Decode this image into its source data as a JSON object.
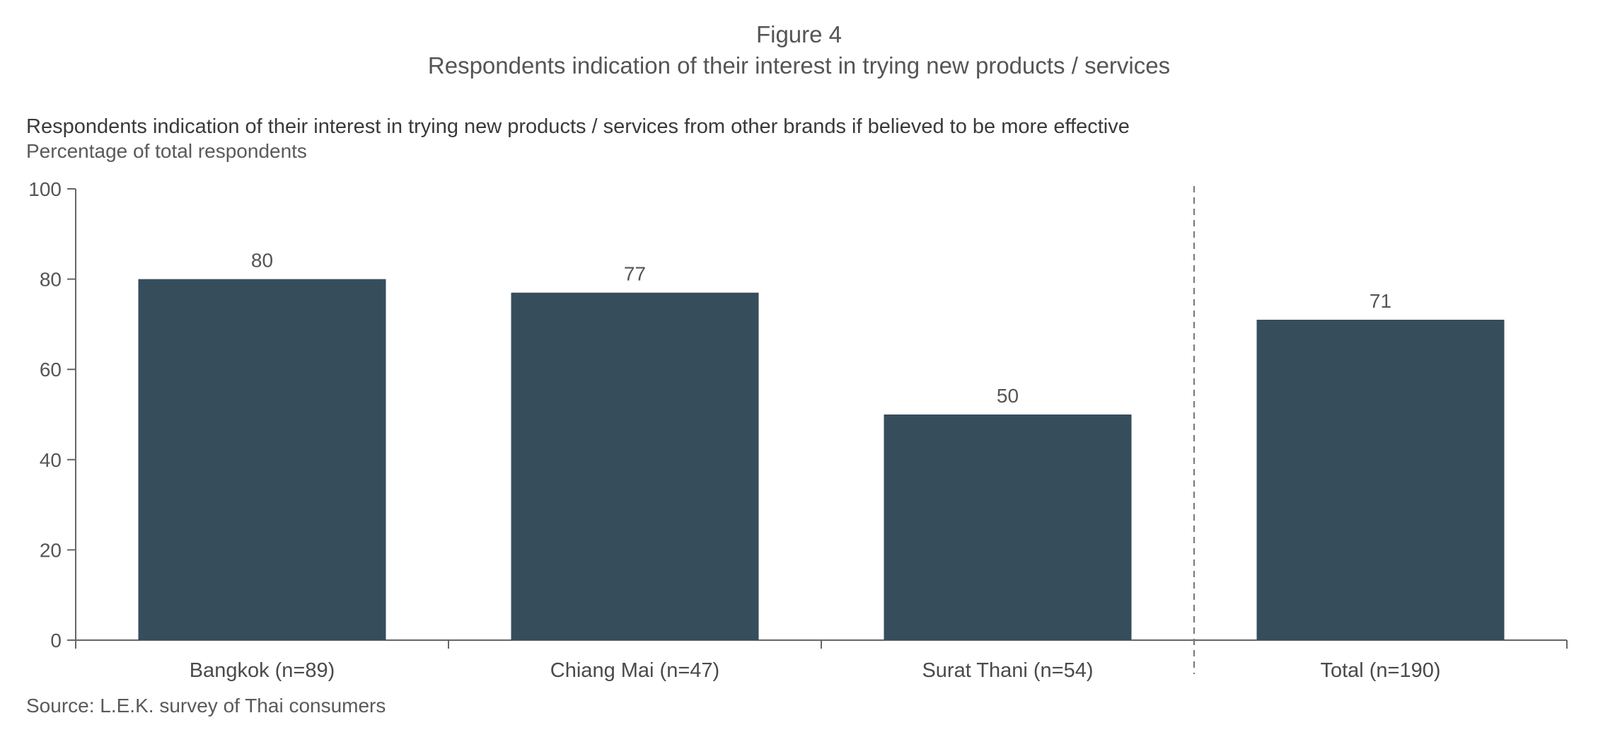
{
  "figure": {
    "label": "Figure 4",
    "title": "Respondents indication of their interest in trying new products / services"
  },
  "chart_heading": "Respondents indication of their interest in trying new products / services from other brands if believed to be more effective",
  "chart_subheading": "Percentage of total respondents",
  "source": "Source: L.E.K. survey of Thai consumers",
  "chart_data": {
    "type": "bar",
    "title": "Respondents indication of their interest in trying new products / services from other brands if believed to be more effective",
    "subtitle": "Percentage of total respondents",
    "xlabel": "",
    "ylabel": "",
    "categories": [
      "Bangkok (n=89)",
      "Chiang Mai (n=47)",
      "Surat Thani (n=54)",
      "Total (n=190)"
    ],
    "values": [
      80,
      77,
      50,
      71
    ],
    "data_labels": [
      "80",
      "77",
      "50",
      "71"
    ],
    "ylim": [
      0,
      100
    ],
    "yticks": [
      0,
      20,
      40,
      60,
      80,
      100
    ],
    "grid": false,
    "legend": "none",
    "separator_before_category": "Total (n=190)",
    "bar_color": "#364d5c",
    "axis_color": "#666666"
  }
}
